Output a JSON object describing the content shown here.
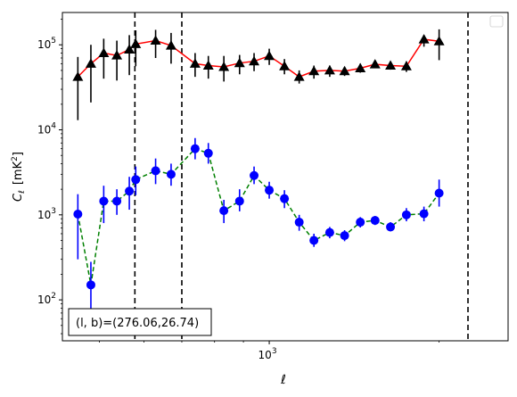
{
  "chart_data": {
    "type": "scatter",
    "xlabel": "ℓ",
    "ylabel": "C",
    "ylabel_sub": "ℓ",
    "ylabel_unit": "[mK",
    "ylabel_unit_sup": "2",
    "ylabel_unit_close": "]",
    "x_scale": "log",
    "y_scale": "log",
    "xlim": [
      430,
      2650
    ],
    "ylim": [
      33,
      240000
    ],
    "x_ticks": [
      {
        "value": 1000,
        "base": "10",
        "exp": "3"
      }
    ],
    "y_ticks": [
      {
        "value": 100,
        "base": "10",
        "exp": "2"
      },
      {
        "value": 1000,
        "base": "10",
        "exp": "3"
      },
      {
        "value": 10000,
        "base": "10",
        "exp": "4"
      },
      {
        "value": 100000,
        "base": "10",
        "exp": "5"
      }
    ],
    "annotation": "(l, b)=(276.06,26.74)",
    "legend": {
      "placement": "top-right",
      "entries": []
    },
    "grid": false,
    "vlines": [
      578,
      700,
      2250
    ],
    "series": [
      {
        "marker": "triangle",
        "color": "#000000",
        "errcolor": "#000000",
        "line_color": "#ff0000",
        "line_style": "solid",
        "points": [
          {
            "x": 458,
            "y": 42000,
            "lo": 13000,
            "hi": 72000
          },
          {
            "x": 483,
            "y": 60000,
            "lo": 21000,
            "hi": 100000
          },
          {
            "x": 509,
            "y": 80000,
            "lo": 40000,
            "hi": 118000
          },
          {
            "x": 537,
            "y": 75000,
            "lo": 38000,
            "hi": 112000
          },
          {
            "x": 565,
            "y": 88000,
            "lo": 44000,
            "hi": 130000
          },
          {
            "x": 580,
            "y": 102000,
            "lo": 56000,
            "hi": 148000
          },
          {
            "x": 629,
            "y": 112000,
            "lo": 70000,
            "hi": 150000
          },
          {
            "x": 670,
            "y": 98000,
            "lo": 60000,
            "hi": 138000
          },
          {
            "x": 739,
            "y": 60000,
            "lo": 42000,
            "hi": 80000
          },
          {
            "x": 780,
            "y": 57000,
            "lo": 40000,
            "hi": 74000
          },
          {
            "x": 831,
            "y": 55000,
            "lo": 37000,
            "hi": 74000
          },
          {
            "x": 886,
            "y": 61000,
            "lo": 45000,
            "hi": 76000
          },
          {
            "x": 940,
            "y": 64000,
            "lo": 49000,
            "hi": 80000
          },
          {
            "x": 1000,
            "y": 74000,
            "lo": 58000,
            "hi": 90000
          },
          {
            "x": 1064,
            "y": 56000,
            "lo": 45000,
            "hi": 68000
          },
          {
            "x": 1130,
            "y": 42000,
            "lo": 35000,
            "hi": 50000
          },
          {
            "x": 1200,
            "y": 49000,
            "lo": 40000,
            "hi": 57000
          },
          {
            "x": 1280,
            "y": 50000,
            "lo": 42000,
            "hi": 57000
          },
          {
            "x": 1360,
            "y": 49000,
            "lo": 43000,
            "hi": 55000
          },
          {
            "x": 1450,
            "y": 53000,
            "lo": 47000,
            "hi": 60000
          },
          {
            "x": 1540,
            "y": 59000,
            "lo": 53000,
            "hi": 66000
          },
          {
            "x": 1640,
            "y": 57000,
            "lo": 51000,
            "hi": 64000
          },
          {
            "x": 1750,
            "y": 56000,
            "lo": 48000,
            "hi": 64000
          },
          {
            "x": 1880,
            "y": 116000,
            "lo": 95000,
            "hi": 130000
          },
          {
            "x": 2000,
            "y": 110000,
            "lo": 66000,
            "hi": 152000
          }
        ]
      },
      {
        "marker": "circle",
        "color": "#0000ff",
        "errcolor": "#0000ff",
        "line_color": "#008000",
        "line_style": "dashed",
        "points": [
          {
            "x": 458,
            "y": 1020,
            "lo": 300,
            "hi": 1750
          },
          {
            "x": 483,
            "y": 150,
            "lo": 55,
            "hi": 280
          },
          {
            "x": 509,
            "y": 1450,
            "lo": 800,
            "hi": 2200
          },
          {
            "x": 537,
            "y": 1450,
            "lo": 1000,
            "hi": 2000
          },
          {
            "x": 565,
            "y": 1900,
            "lo": 1150,
            "hi": 2800
          },
          {
            "x": 580,
            "y": 2600,
            "lo": 1700,
            "hi": 3700
          },
          {
            "x": 629,
            "y": 3300,
            "lo": 2300,
            "hi": 4600
          },
          {
            "x": 670,
            "y": 3000,
            "lo": 2200,
            "hi": 4000
          },
          {
            "x": 739,
            "y": 6000,
            "lo": 4500,
            "hi": 8000
          },
          {
            "x": 780,
            "y": 5300,
            "lo": 4000,
            "hi": 7000
          },
          {
            "x": 831,
            "y": 1120,
            "lo": 800,
            "hi": 1500
          },
          {
            "x": 886,
            "y": 1450,
            "lo": 1100,
            "hi": 2000
          },
          {
            "x": 940,
            "y": 2900,
            "lo": 2300,
            "hi": 3700
          },
          {
            "x": 1000,
            "y": 1950,
            "lo": 1550,
            "hi": 2450
          },
          {
            "x": 1064,
            "y": 1550,
            "lo": 1200,
            "hi": 1950
          },
          {
            "x": 1130,
            "y": 820,
            "lo": 650,
            "hi": 1000
          },
          {
            "x": 1200,
            "y": 500,
            "lo": 420,
            "hi": 600
          },
          {
            "x": 1280,
            "y": 620,
            "lo": 530,
            "hi": 720
          },
          {
            "x": 1360,
            "y": 570,
            "lo": 490,
            "hi": 660
          },
          {
            "x": 1450,
            "y": 820,
            "lo": 710,
            "hi": 940
          },
          {
            "x": 1540,
            "y": 860,
            "lo": 760,
            "hi": 970
          },
          {
            "x": 1640,
            "y": 720,
            "lo": 640,
            "hi": 820
          },
          {
            "x": 1750,
            "y": 1000,
            "lo": 840,
            "hi": 1200
          },
          {
            "x": 1880,
            "y": 1030,
            "lo": 840,
            "hi": 1250
          },
          {
            "x": 2000,
            "y": 1800,
            "lo": 1250,
            "hi": 2600
          }
        ]
      }
    ]
  }
}
